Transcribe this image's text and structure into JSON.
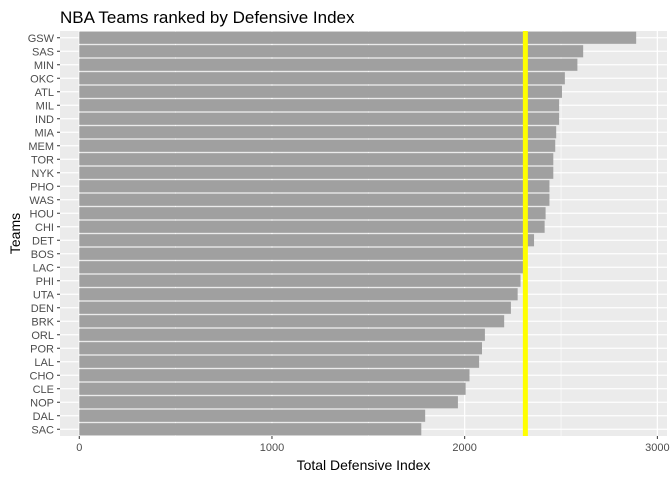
{
  "chart_data": {
    "type": "bar",
    "orientation": "horizontal",
    "title": "NBA Teams ranked by Defensive Index",
    "xlabel": "Total Defensive Index",
    "ylabel": "Teams",
    "categories": [
      "GSW",
      "SAS",
      "MIN",
      "OKC",
      "ATL",
      "MIL",
      "IND",
      "MIA",
      "MEM",
      "TOR",
      "NYK",
      "PHO",
      "WAS",
      "HOU",
      "CHI",
      "DET",
      "BOS",
      "LAC",
      "PHI",
      "UTA",
      "DEN",
      "BRK",
      "ORL",
      "POR",
      "LAL",
      "CHO",
      "CLE",
      "NOP",
      "DAL",
      "SAC"
    ],
    "values": [
      2890,
      2615,
      2585,
      2520,
      2505,
      2490,
      2490,
      2475,
      2470,
      2460,
      2460,
      2440,
      2440,
      2420,
      2415,
      2360,
      2310,
      2305,
      2290,
      2275,
      2240,
      2205,
      2105,
      2090,
      2075,
      2025,
      2005,
      1965,
      1795,
      1775
    ],
    "xlim": [
      -100,
      3050
    ],
    "xticks": [
      0,
      1000,
      2000,
      3000
    ],
    "reference_line": {
      "value": 2315,
      "color": "#FFFF00"
    },
    "bar_color": "#A0A0A0",
    "panel_background": "#EBEBEB",
    "grid": true,
    "legend": "none"
  }
}
